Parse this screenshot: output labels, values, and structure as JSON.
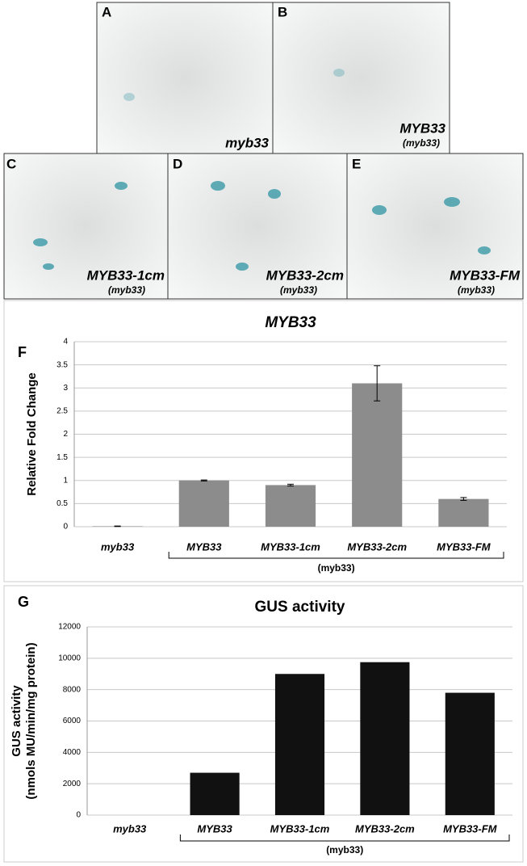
{
  "panels": [
    {
      "letter": "A",
      "caption": "myb33"
    },
    {
      "letter": "B",
      "caption": "MYB33",
      "sub": "(myb33)"
    },
    {
      "letter": "C",
      "caption": "MYB33-1cm",
      "sub": "(myb33)"
    },
    {
      "letter": "D",
      "caption": "MYB33-2cm",
      "sub": "(myb33)"
    },
    {
      "letter": "E",
      "caption": "MYB33-FM",
      "sub": "(myb33)"
    }
  ],
  "chart_data": [
    {
      "type": "bar",
      "letter": "F",
      "title": "MYB33",
      "y_label": [
        "Relative Fold Change"
      ],
      "categories": [
        "myb33",
        "MYB33",
        "MYB33-1cm",
        "MYB33-2cm",
        "MYB33-FM"
      ],
      "values": [
        0.01,
        1.0,
        0.9,
        3.1,
        0.6
      ],
      "errors": [
        0.005,
        0.01,
        0.02,
        0.38,
        0.03
      ],
      "color": "#8c8c8c",
      "group_label": "(myb33)",
      "ylim": [
        0,
        4
      ],
      "yticks": [
        0,
        0.5,
        1,
        1.5,
        2,
        2.5,
        3,
        3.5,
        4
      ],
      "grid": true
    },
    {
      "type": "bar",
      "letter": "G",
      "title": "GUS activity",
      "y_label": [
        "GUS activity",
        "(nmols MU/min/mg protein)"
      ],
      "categories": [
        "myb33",
        "MYB33",
        "MYB33-1cm",
        "MYB33-2cm",
        "MYB33-FM"
      ],
      "values": [
        0,
        2700,
        9000,
        9750,
        7800
      ],
      "color": "#111111",
      "group_label": "(myb33)",
      "ylim": [
        0,
        12000
      ],
      "yticks": [
        0,
        2000,
        4000,
        6000,
        8000,
        10000,
        12000
      ],
      "grid": true
    }
  ]
}
